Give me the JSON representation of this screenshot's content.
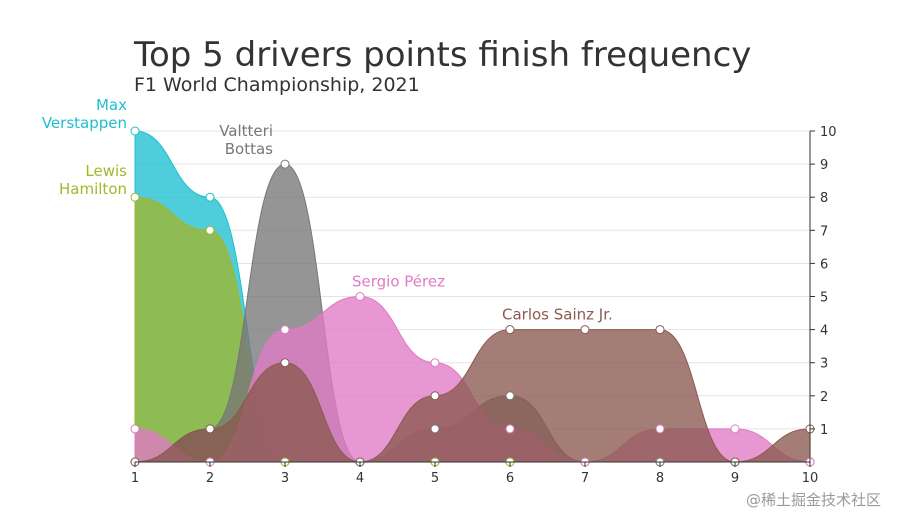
{
  "chart_data": {
    "type": "area",
    "title": "Top 5 drivers points finish frequency",
    "subtitle": "F1 World Championship, 2021",
    "x": [
      1,
      2,
      3,
      4,
      5,
      6,
      7,
      8,
      9,
      10
    ],
    "ylim": [
      0,
      10
    ],
    "y_axis_side": "right",
    "y_ticks": [
      1,
      2,
      3,
      4,
      5,
      6,
      7,
      8,
      9,
      10
    ],
    "grid": true,
    "series": [
      {
        "name": "Max Verstappen",
        "label_lines": [
          "Max",
          "Verstappen"
        ],
        "color": "#1fbfd0",
        "values": [
          10,
          8,
          0,
          0,
          0,
          0,
          0,
          0,
          0,
          0
        ]
      },
      {
        "name": "Lewis Hamilton",
        "label_lines": [
          "Lewis",
          "Hamilton"
        ],
        "color": "#a2b62e",
        "values": [
          8,
          7,
          0,
          0,
          0,
          0,
          0,
          0,
          0,
          0
        ]
      },
      {
        "name": "Valtteri Bottas",
        "label_lines": [
          "Valtteri",
          "Bottas"
        ],
        "color": "#777777",
        "values": [
          0,
          1,
          9,
          0,
          1,
          2,
          0,
          0,
          0,
          0
        ]
      },
      {
        "name": "Sergio Pérez",
        "label_lines": [
          "Sergio Pérez"
        ],
        "color": "#e07ac4",
        "values": [
          1,
          0,
          4,
          5,
          3,
          1,
          0,
          1,
          1,
          0
        ]
      },
      {
        "name": "Carlos Sainz Jr.",
        "label_lines": [
          "Carlos Sainz Jr."
        ],
        "color": "#8b5a50",
        "values": [
          0,
          1,
          3,
          0,
          2,
          4,
          4,
          4,
          0,
          1
        ]
      }
    ]
  },
  "watermark": "@稀土掘金技术社区"
}
